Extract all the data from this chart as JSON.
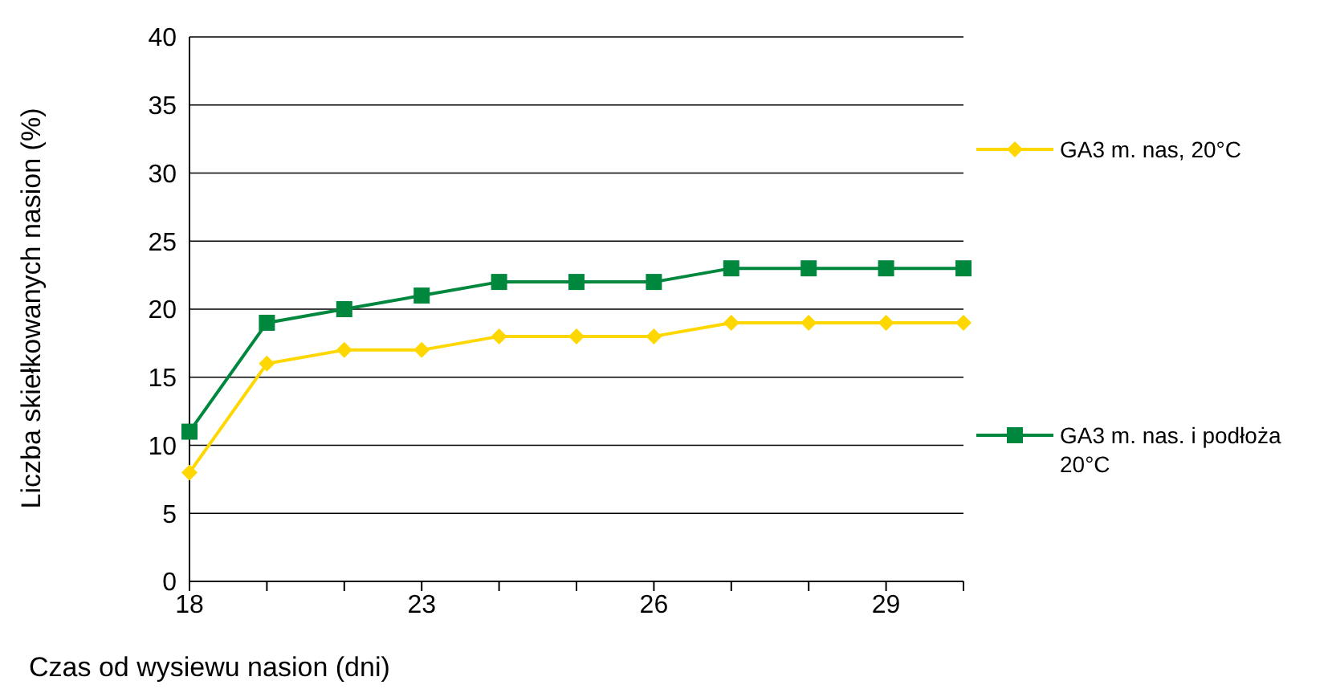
{
  "chart_data": {
    "type": "line",
    "xlabel": "Czas od wysiewu nasion (dni)",
    "ylabel": "Liczba skiełkowanych nasion (%)",
    "categories": [
      "18",
      null,
      null,
      "23",
      null,
      null,
      "26",
      null,
      null,
      "29",
      null
    ],
    "ylim": [
      0,
      40
    ],
    "yticks": [
      0,
      5,
      10,
      15,
      20,
      25,
      30,
      35,
      40
    ],
    "grid": "y",
    "legend": "right",
    "line_style": "solid",
    "series": [
      {
        "name": "GA3 m. nas, 20°C",
        "color": "#ffd700",
        "marker": "diamond",
        "values": [
          8,
          16,
          17,
          17,
          18,
          18,
          18,
          19,
          19,
          19,
          19
        ]
      },
      {
        "name": "GA3 m. nas. i podłoża 20°C",
        "color": "#00873e",
        "marker": "square",
        "values": [
          11,
          19,
          20,
          21,
          22,
          22,
          22,
          23,
          23,
          23,
          23
        ]
      }
    ]
  }
}
